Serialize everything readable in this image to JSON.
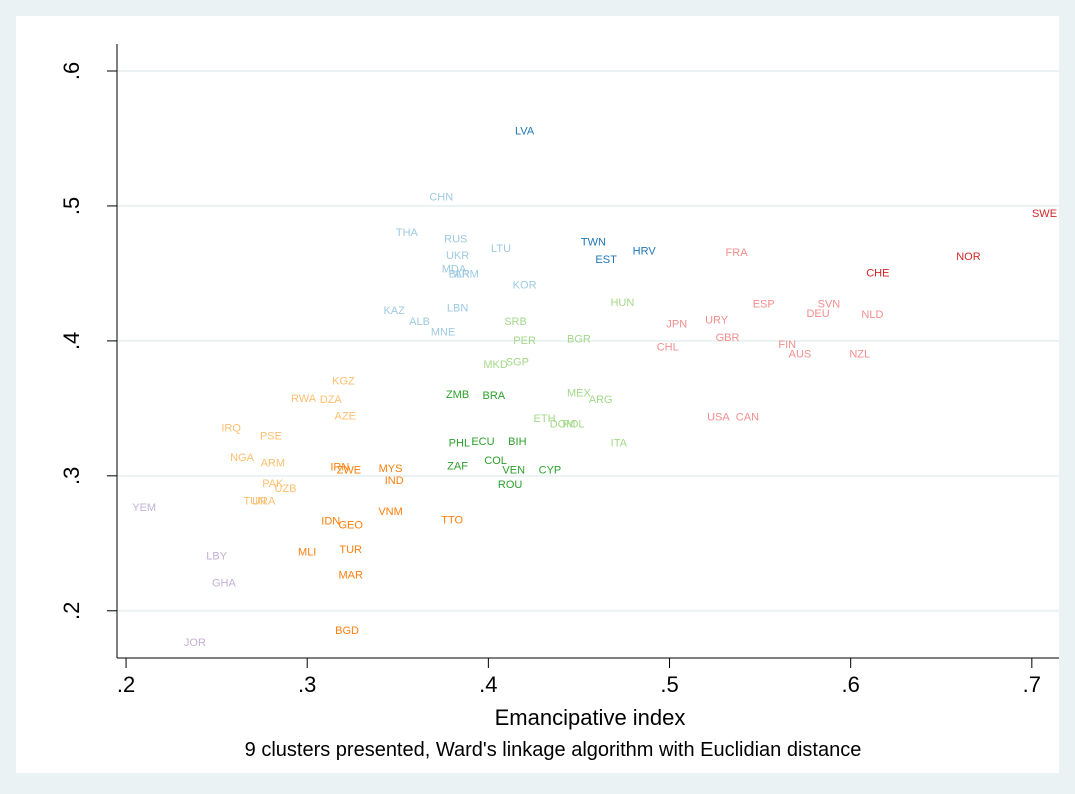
{
  "chart_data": {
    "type": "scatter",
    "title": "",
    "xlabel": "Emancipative index",
    "ylabel": "",
    "note": "9 clusters presented, Ward's linkage algorithm with Euclidian distance",
    "xlim": [
      0.195,
      0.715
    ],
    "ylim": [
      0.165,
      0.62
    ],
    "x_ticks": [
      {
        "value": 0.2,
        "label": ".2"
      },
      {
        "value": 0.3,
        "label": ".3"
      },
      {
        "value": 0.4,
        "label": ".4"
      },
      {
        "value": 0.5,
        "label": ".5"
      },
      {
        "value": 0.6,
        "label": ".6"
      },
      {
        "value": 0.7,
        "label": ".7"
      }
    ],
    "y_ticks": [
      {
        "value": 0.2,
        "label": ".2"
      },
      {
        "value": 0.3,
        "label": ".3"
      },
      {
        "value": 0.4,
        "label": ".4"
      },
      {
        "value": 0.5,
        "label": ".5"
      },
      {
        "value": 0.6,
        "label": ".6"
      }
    ],
    "grid": "horizontal",
    "series": [
      {
        "color": "#1f77b4",
        "points": [
          {
            "label": "LVA",
            "x": 0.42,
            "y": 0.555
          },
          {
            "label": "TWN",
            "x": 0.458,
            "y": 0.473
          },
          {
            "label": "EST",
            "x": 0.465,
            "y": 0.46
          },
          {
            "label": "HRV",
            "x": 0.486,
            "y": 0.466
          }
        ]
      },
      {
        "color": "#9ecae1",
        "points": [
          {
            "label": "CHN",
            "x": 0.374,
            "y": 0.506
          },
          {
            "label": "THA",
            "x": 0.355,
            "y": 0.48
          },
          {
            "label": "RUS",
            "x": 0.382,
            "y": 0.475
          },
          {
            "label": "UKR",
            "x": 0.383,
            "y": 0.463
          },
          {
            "label": "LTU",
            "x": 0.407,
            "y": 0.468
          },
          {
            "label": "MDA",
            "x": 0.381,
            "y": 0.453
          },
          {
            "label": "BLR",
            "x": 0.384,
            "y": 0.449
          },
          {
            "label": "ARM",
            "x": 0.388,
            "y": 0.449
          },
          {
            "label": "KOR",
            "x": 0.42,
            "y": 0.441
          },
          {
            "label": "KAZ",
            "x": 0.348,
            "y": 0.422
          },
          {
            "label": "LBN",
            "x": 0.383,
            "y": 0.424
          },
          {
            "label": "ALB",
            "x": 0.362,
            "y": 0.414
          },
          {
            "label": "MNE",
            "x": 0.375,
            "y": 0.406
          }
        ]
      },
      {
        "color": "#f28e8e",
        "points": [
          {
            "label": "FRA",
            "x": 0.537,
            "y": 0.465
          },
          {
            "label": "ESP",
            "x": 0.552,
            "y": 0.427
          },
          {
            "label": "SVN",
            "x": 0.588,
            "y": 0.427
          },
          {
            "label": "DEU",
            "x": 0.582,
            "y": 0.42
          },
          {
            "label": "NLD",
            "x": 0.612,
            "y": 0.419
          },
          {
            "label": "JPN",
            "x": 0.504,
            "y": 0.412
          },
          {
            "label": "URY",
            "x": 0.526,
            "y": 0.415
          },
          {
            "label": "GBR",
            "x": 0.532,
            "y": 0.402
          },
          {
            "label": "CHL",
            "x": 0.499,
            "y": 0.395
          },
          {
            "label": "FIN",
            "x": 0.565,
            "y": 0.397
          },
          {
            "label": "AUS",
            "x": 0.572,
            "y": 0.39
          },
          {
            "label": "NZL",
            "x": 0.605,
            "y": 0.39
          },
          {
            "label": "USA",
            "x": 0.527,
            "y": 0.343
          },
          {
            "label": "CAN",
            "x": 0.543,
            "y": 0.343
          }
        ]
      },
      {
        "color": "#d62728",
        "points": [
          {
            "label": "SWE",
            "x": 0.707,
            "y": 0.494
          },
          {
            "label": "NOR",
            "x": 0.665,
            "y": 0.462
          },
          {
            "label": "CHE",
            "x": 0.615,
            "y": 0.45
          }
        ]
      },
      {
        "color": "#a3d98a",
        "points": [
          {
            "label": "HUN",
            "x": 0.474,
            "y": 0.428
          },
          {
            "label": "SRB",
            "x": 0.415,
            "y": 0.414
          },
          {
            "label": "PER",
            "x": 0.42,
            "y": 0.4
          },
          {
            "label": "BGR",
            "x": 0.45,
            "y": 0.401
          },
          {
            "label": "MKD",
            "x": 0.404,
            "y": 0.382
          },
          {
            "label": "SGP",
            "x": 0.416,
            "y": 0.384
          },
          {
            "label": "MEX",
            "x": 0.45,
            "y": 0.361
          },
          {
            "label": "ARG",
            "x": 0.462,
            "y": 0.356
          },
          {
            "label": "ETH",
            "x": 0.431,
            "y": 0.342
          },
          {
            "label": "DOM",
            "x": 0.441,
            "y": 0.338
          },
          {
            "label": "POL",
            "x": 0.447,
            "y": 0.338
          },
          {
            "label": "ITA",
            "x": 0.472,
            "y": 0.324
          }
        ]
      },
      {
        "color": "#2ca02c",
        "points": [
          {
            "label": "ZMB",
            "x": 0.383,
            "y": 0.36
          },
          {
            "label": "BRA",
            "x": 0.403,
            "y": 0.359
          },
          {
            "label": "PHL",
            "x": 0.384,
            "y": 0.324
          },
          {
            "label": "ECU",
            "x": 0.397,
            "y": 0.325
          },
          {
            "label": "BIH",
            "x": 0.416,
            "y": 0.325
          },
          {
            "label": "COL",
            "x": 0.404,
            "y": 0.311
          },
          {
            "label": "ZAF",
            "x": 0.383,
            "y": 0.307
          },
          {
            "label": "VEN",
            "x": 0.414,
            "y": 0.304
          },
          {
            "label": "CYP",
            "x": 0.434,
            "y": 0.304
          },
          {
            "label": "ROU",
            "x": 0.412,
            "y": 0.293
          }
        ]
      },
      {
        "color": "#fdbf6f",
        "points": [
          {
            "label": "KGZ",
            "x": 0.32,
            "y": 0.37
          },
          {
            "label": "RWA",
            "x": 0.298,
            "y": 0.357
          },
          {
            "label": "DZA",
            "x": 0.313,
            "y": 0.356
          },
          {
            "label": "AZE",
            "x": 0.321,
            "y": 0.344
          },
          {
            "label": "IRQ",
            "x": 0.258,
            "y": 0.335
          },
          {
            "label": "PSE",
            "x": 0.28,
            "y": 0.329
          },
          {
            "label": "NGA",
            "x": 0.264,
            "y": 0.313
          },
          {
            "label": "ARM",
            "x": 0.281,
            "y": 0.309
          },
          {
            "label": "PAK",
            "x": 0.281,
            "y": 0.294
          },
          {
            "label": "UZB",
            "x": 0.288,
            "y": 0.29
          },
          {
            "label": "TUN",
            "x": 0.271,
            "y": 0.281
          },
          {
            "label": "URA",
            "x": 0.276,
            "y": 0.281
          }
        ]
      },
      {
        "color": "#ff7f0e",
        "points": [
          {
            "label": "IRN",
            "x": 0.318,
            "y": 0.306
          },
          {
            "label": "ZWE",
            "x": 0.323,
            "y": 0.304
          },
          {
            "label": "MYS",
            "x": 0.346,
            "y": 0.305
          },
          {
            "label": "IND",
            "x": 0.348,
            "y": 0.296
          },
          {
            "label": "VNM",
            "x": 0.346,
            "y": 0.273
          },
          {
            "label": "TTO",
            "x": 0.38,
            "y": 0.267
          },
          {
            "label": "IDN",
            "x": 0.313,
            "y": 0.266
          },
          {
            "label": "GEO",
            "x": 0.324,
            "y": 0.263
          },
          {
            "label": "MLI",
            "x": 0.3,
            "y": 0.243
          },
          {
            "label": "TUR",
            "x": 0.324,
            "y": 0.245
          },
          {
            "label": "MAR",
            "x": 0.324,
            "y": 0.226
          },
          {
            "label": "BGD",
            "x": 0.322,
            "y": 0.185
          }
        ]
      },
      {
        "color": "#c5b0d5",
        "points": [
          {
            "label": "YEM",
            "x": 0.21,
            "y": 0.276
          },
          {
            "label": "LBY",
            "x": 0.25,
            "y": 0.24
          },
          {
            "label": "GHA",
            "x": 0.254,
            "y": 0.22
          },
          {
            "label": "JOR",
            "x": 0.238,
            "y": 0.176
          }
        ]
      }
    ]
  }
}
